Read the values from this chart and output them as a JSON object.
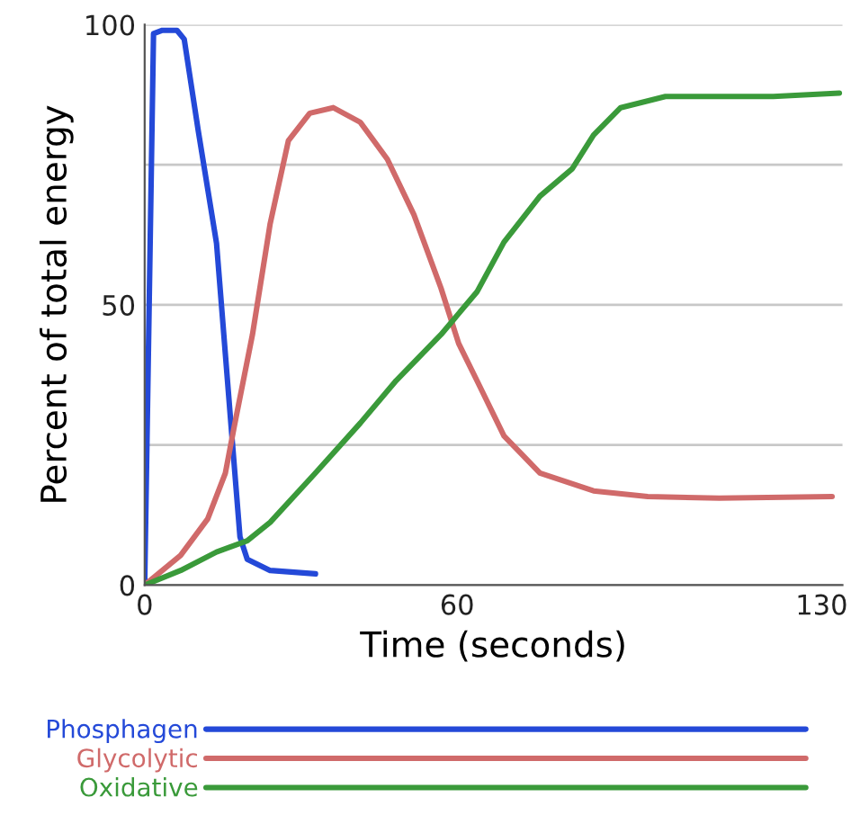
{
  "chart_data": {
    "type": "line",
    "xlabel": "Time (seconds)",
    "ylabel": "Percent of total energy",
    "xlim": [
      0,
      134
    ],
    "ylim": [
      0,
      100
    ],
    "xticks": [
      0,
      60,
      130
    ],
    "yticks": [
      0,
      {
        "value": 25,
        "label": null
      },
      50,
      {
        "value": 75,
        "label": null
      },
      100
    ],
    "grid": "y",
    "legend": "bottom",
    "marker": "none",
    "line_style": "solid",
    "series": [
      {
        "name": "Phosphagen",
        "color": "#2449d8",
        "x": [
          0,
          1.7,
          3.4,
          6.2,
          7.6,
          10.3,
          13.8,
          16.6,
          18.3,
          19.7,
          24.1,
          32.8
        ],
        "values": [
          0,
          98.4,
          99,
          99,
          97.4,
          81,
          61,
          28.3,
          8.6,
          4.6,
          2.6,
          2.0
        ]
      },
      {
        "name": "Glycolytic",
        "color": "#d06a6a",
        "x": [
          0,
          6.9,
          12.1,
          15.5,
          17.2,
          20.7,
          24.1,
          27.6,
          31.7,
          36.2,
          41.4,
          46.6,
          51.7,
          56.9,
          60.3,
          63.8,
          69,
          75.9,
          86.2,
          96.6,
          110.3,
          132
        ],
        "values": [
          0,
          5.3,
          11.8,
          20,
          28.3,
          44.7,
          64.5,
          79.3,
          84.2,
          85.2,
          82.6,
          76,
          66.1,
          53,
          43.1,
          36.5,
          26.6,
          20,
          16.8,
          15.8,
          15.5,
          15.8
        ]
      },
      {
        "name": "Oxidative",
        "color": "#3a9a3a",
        "x": [
          0,
          6.9,
          13.8,
          19.7,
          24.1,
          32.8,
          41.4,
          48.3,
          56.9,
          63.8,
          69,
          75.9,
          82.1,
          86.2,
          91.4,
          100,
          110.3,
          120.7,
          133.4
        ],
        "values": [
          0,
          2.6,
          5.9,
          7.9,
          11.2,
          20,
          28.9,
          36.5,
          44.7,
          52.3,
          61.2,
          69.4,
          74.3,
          80.3,
          85.2,
          87.2,
          87.2,
          87.2,
          87.8
        ]
      }
    ]
  }
}
